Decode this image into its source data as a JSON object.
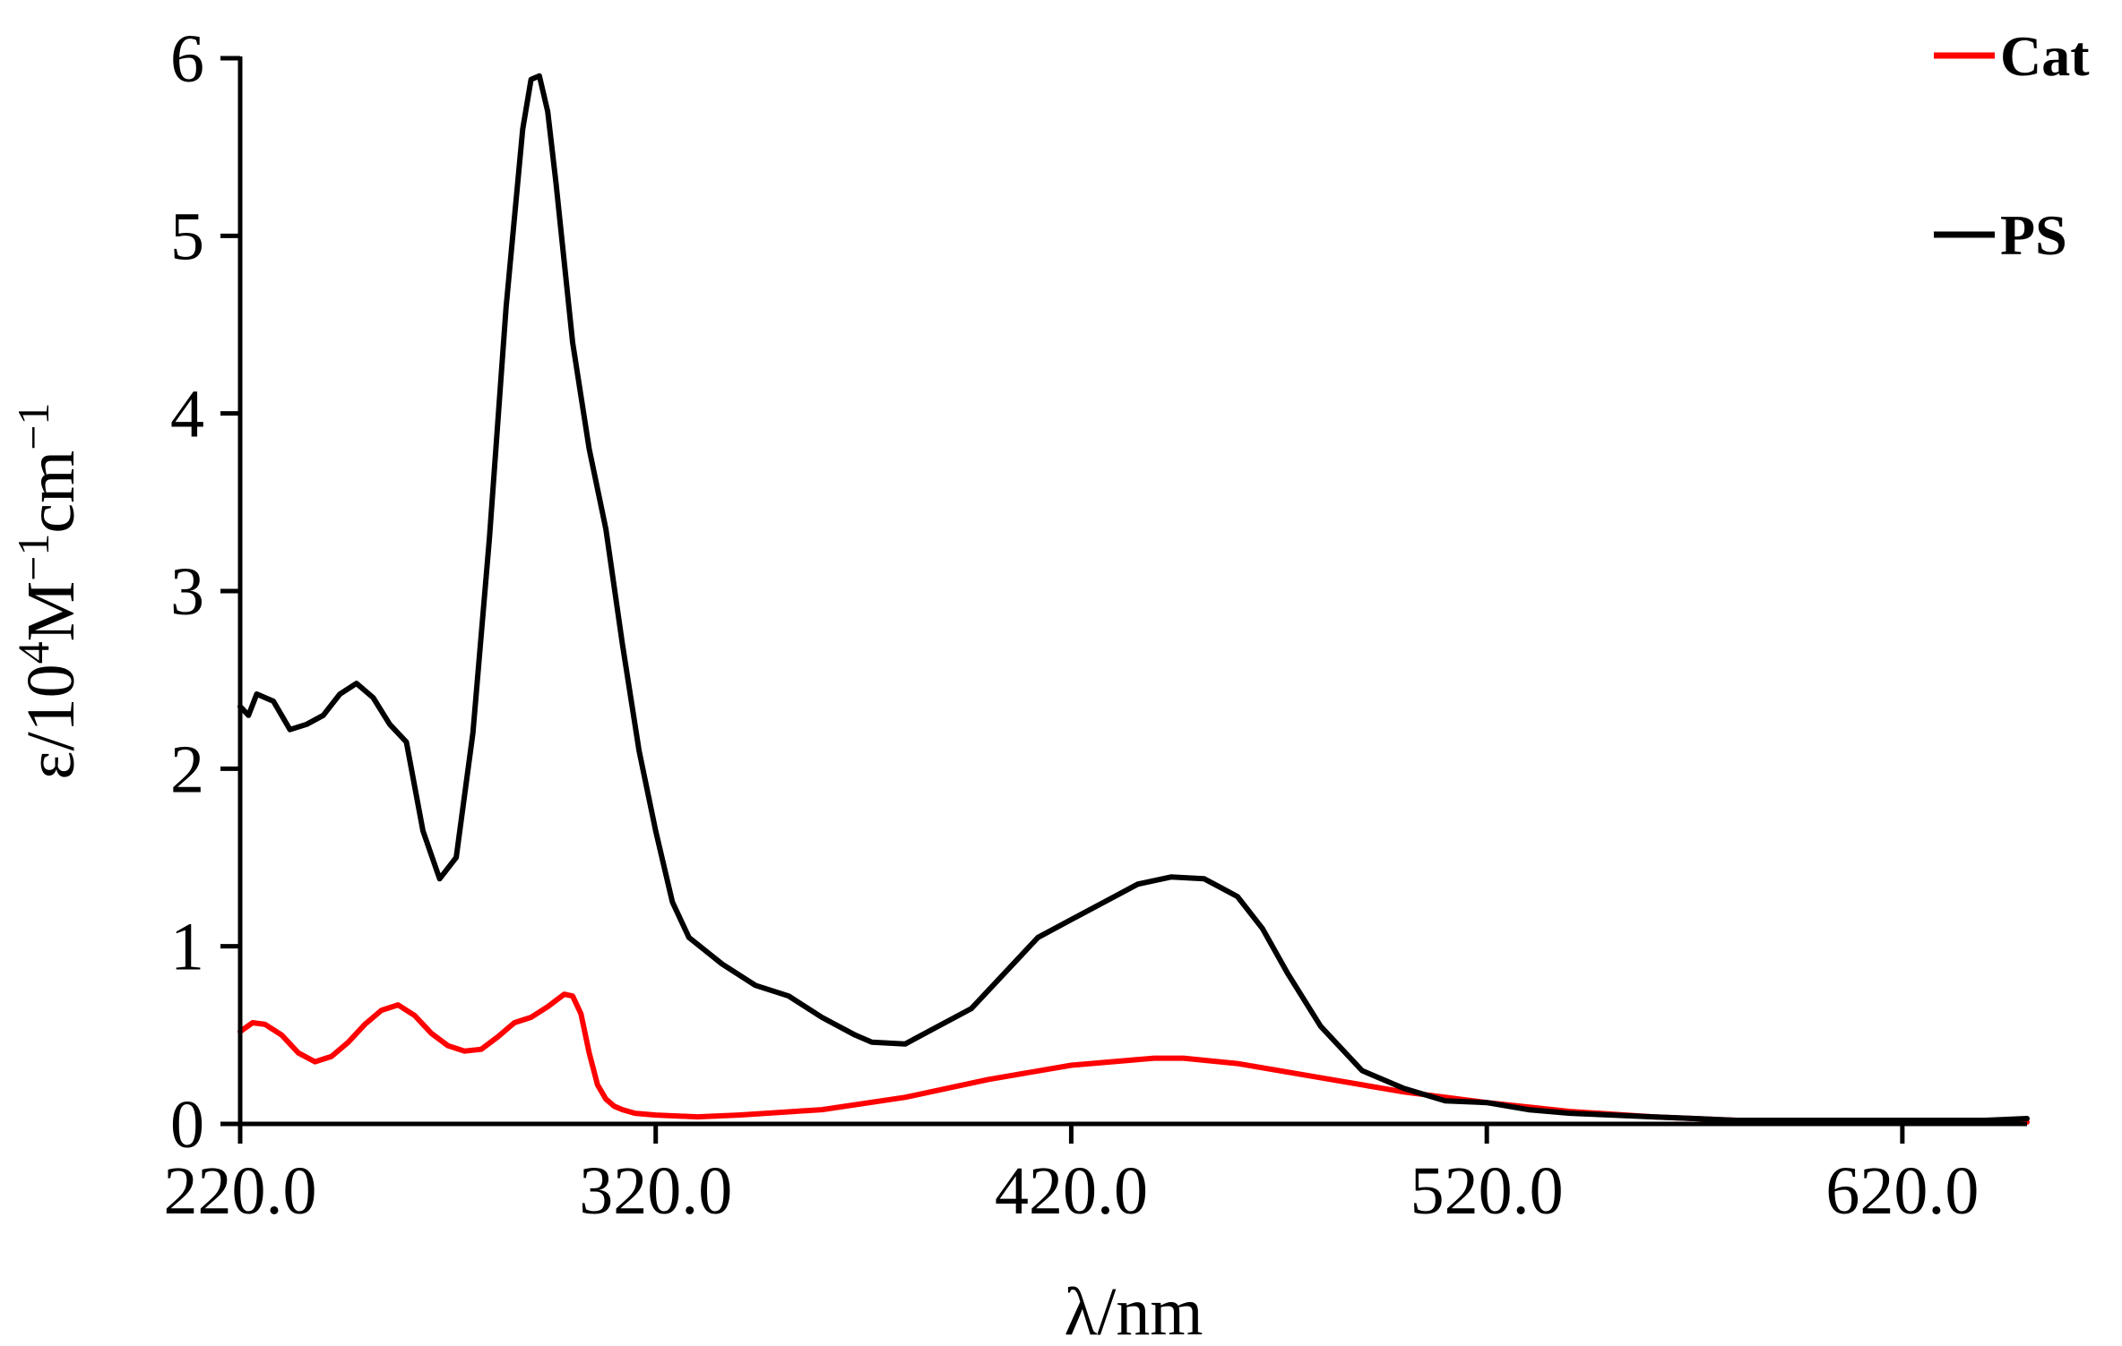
{
  "chart_data": {
    "type": "line",
    "title": "",
    "xlabel": "λ/nm",
    "ylabel": {
      "parts": [
        {
          "text": "ε/10",
          "sup": false
        },
        {
          "text": "4",
          "sup": true
        },
        {
          "text": "M",
          "sup": false
        },
        {
          "text": "−1",
          "sup": true
        },
        {
          "text": "cm",
          "sup": false
        },
        {
          "text": "−1",
          "sup": true
        }
      ]
    },
    "xlim": [
      220,
      650
    ],
    "ylim": [
      0,
      6
    ],
    "xticks": [
      220,
      320,
      420,
      520,
      620
    ],
    "xtick_labels": [
      "220.0",
      "320.0",
      "420.0",
      "520.0",
      "620.0"
    ],
    "yticks": [
      0,
      1,
      2,
      3,
      4,
      5,
      6
    ],
    "ytick_labels": [
      "0",
      "1",
      "2",
      "3",
      "4",
      "5",
      "6"
    ],
    "grid": false,
    "legend_position": "top-right",
    "series": [
      {
        "name": "Cat",
        "color": "#ff0000",
        "x": [
          220,
          223,
          226,
          230,
          234,
          238,
          242,
          246,
          250,
          254,
          258,
          262,
          266,
          270,
          274,
          278,
          282,
          286,
          290,
          294,
          298,
          300,
          302,
          304,
          306,
          308,
          310,
          312,
          315,
          320,
          330,
          340,
          360,
          380,
          400,
          420,
          440,
          447,
          460,
          480,
          500,
          520,
          540,
          560,
          580,
          600,
          620,
          640,
          650
        ],
        "y": [
          0.52,
          0.57,
          0.56,
          0.5,
          0.4,
          0.35,
          0.38,
          0.46,
          0.56,
          0.64,
          0.67,
          0.61,
          0.51,
          0.44,
          0.41,
          0.42,
          0.49,
          0.57,
          0.6,
          0.66,
          0.73,
          0.72,
          0.62,
          0.4,
          0.22,
          0.14,
          0.1,
          0.08,
          0.06,
          0.05,
          0.04,
          0.05,
          0.08,
          0.15,
          0.25,
          0.33,
          0.37,
          0.37,
          0.34,
          0.26,
          0.18,
          0.12,
          0.07,
          0.04,
          0.02,
          0.02,
          0.01,
          0.01,
          0.01
        ]
      },
      {
        "name": "PS",
        "color": "#000000",
        "x": [
          220,
          222,
          224,
          226,
          228,
          232,
          236,
          240,
          244,
          248,
          252,
          256,
          260,
          264,
          268,
          272,
          276,
          280,
          284,
          288,
          290,
          292,
          294,
          296,
          300,
          304,
          308,
          312,
          316,
          320,
          324,
          328,
          336,
          344,
          352,
          360,
          368,
          372,
          380,
          388,
          396,
          404,
          412,
          420,
          428,
          436,
          444,
          452,
          456,
          460,
          466,
          472,
          480,
          490,
          500,
          510,
          520,
          530,
          540,
          560,
          580,
          600,
          620,
          640,
          650
        ],
        "y": [
          2.35,
          2.3,
          2.42,
          2.4,
          2.38,
          2.22,
          2.25,
          2.3,
          2.42,
          2.48,
          2.4,
          2.25,
          2.15,
          1.65,
          1.38,
          1.5,
          2.2,
          3.3,
          4.6,
          5.6,
          5.88,
          5.9,
          5.7,
          5.3,
          4.4,
          3.8,
          3.35,
          2.7,
          2.1,
          1.65,
          1.25,
          1.05,
          0.9,
          0.78,
          0.72,
          0.6,
          0.5,
          0.46,
          0.45,
          0.55,
          0.65,
          0.85,
          1.05,
          1.15,
          1.25,
          1.35,
          1.39,
          1.38,
          1.33,
          1.28,
          1.1,
          0.85,
          0.55,
          0.3,
          0.2,
          0.13,
          0.12,
          0.08,
          0.06,
          0.04,
          0.02,
          0.02,
          0.02,
          0.02,
          0.03
        ]
      }
    ]
  }
}
